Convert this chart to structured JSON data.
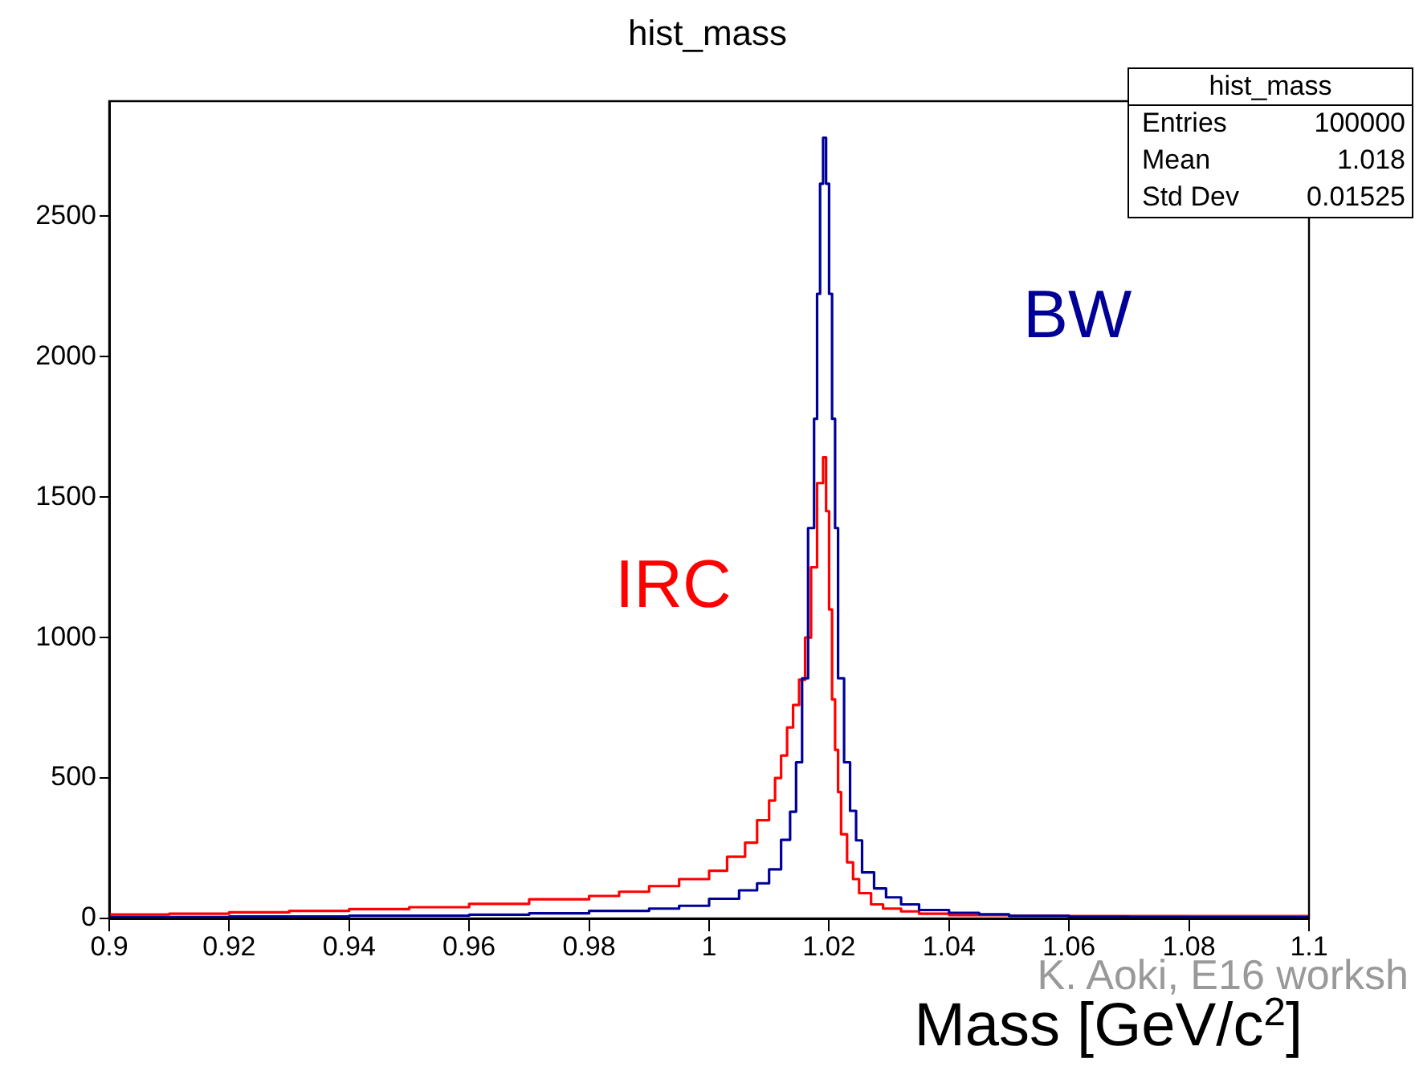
{
  "chart_data": {
    "type": "step",
    "title": "hist_mass",
    "xlabel": "Mass [GeV/c$^{2}$]",
    "xlim": [
      0.9,
      1.1
    ],
    "xticks": [
      0.9,
      0.92,
      0.94,
      0.96,
      0.98,
      1,
      1.02,
      1.04,
      1.06,
      1.08,
      1.1
    ],
    "ylim": [
      0,
      2910
    ],
    "yticks": [
      0,
      500,
      1000,
      1500,
      2000,
      2500
    ],
    "marker": "none",
    "annotations": [
      "hist_mass",
      "Entries",
      "100000",
      "Mean",
      "1.018",
      "Std Dev",
      "0.01525",
      "K. Aoki, E16 worksh"
    ],
    "series": [
      {
        "name": "BW",
        "color": "#000099",
        "x": [
          0.9,
          0.92,
          0.94,
          0.96,
          0.97,
          0.98,
          0.99,
          0.995,
          1.0,
          1.005,
          1.008,
          1.01,
          1.012,
          1.0135,
          1.0145,
          1.0155,
          1.0165,
          1.0175,
          1.018,
          1.0185,
          1.019,
          1.0195,
          1.02,
          1.0205,
          1.021,
          1.0215,
          1.0225,
          1.0235,
          1.0245,
          1.0255,
          1.0275,
          1.0295,
          1.032,
          1.035,
          1.04,
          1.045,
          1.05,
          1.06,
          1.07,
          1.08,
          1.09,
          1.1
        ],
        "values": [
          4,
          5,
          7,
          10,
          13,
          18,
          27,
          35,
          45,
          70,
          100,
          125,
          175,
          280,
          380,
          556,
          855,
          1390,
          1779,
          2224,
          2616,
          2780,
          2616,
          2224,
          1779,
          1390,
          855,
          556,
          383,
          278,
          164,
          107,
          75,
          50,
          30,
          20,
          15,
          9,
          6,
          5,
          4,
          4
        ]
      },
      {
        "name": "IRC",
        "color": "#ff0000",
        "x": [
          0.9,
          0.91,
          0.92,
          0.93,
          0.94,
          0.95,
          0.96,
          0.97,
          0.98,
          0.985,
          0.99,
          0.995,
          1.0,
          1.003,
          1.006,
          1.008,
          1.01,
          1.011,
          1.012,
          1.013,
          1.014,
          1.015,
          1.016,
          1.017,
          1.018,
          1.019,
          1.0195,
          1.02,
          1.0205,
          1.021,
          1.0215,
          1.022,
          1.023,
          1.024,
          1.025,
          1.027,
          1.029,
          1.032,
          1.035,
          1.04,
          1.05,
          1.06,
          1.08,
          1.1
        ],
        "values": [
          12,
          14,
          17,
          22,
          27,
          33,
          40,
          52,
          68,
          80,
          95,
          115,
          140,
          170,
          220,
          270,
          350,
          420,
          500,
          580,
          680,
          760,
          850,
          1000,
          1250,
          1550,
          1642,
          1450,
          1100,
          780,
          600,
          450,
          300,
          200,
          140,
          90,
          50,
          35,
          25,
          17,
          12,
          10,
          8,
          8
        ]
      }
    ]
  }
}
